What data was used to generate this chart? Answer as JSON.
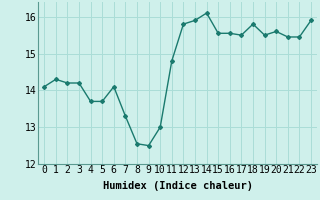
{
  "x": [
    0,
    1,
    2,
    3,
    4,
    5,
    6,
    7,
    8,
    9,
    10,
    11,
    12,
    13,
    14,
    15,
    16,
    17,
    18,
    19,
    20,
    21,
    22,
    23
  ],
  "y": [
    14.1,
    14.3,
    14.2,
    14.2,
    13.7,
    13.7,
    14.1,
    13.3,
    12.55,
    12.5,
    13.0,
    14.8,
    15.8,
    15.9,
    16.1,
    15.55,
    15.55,
    15.5,
    15.8,
    15.5,
    15.6,
    15.45,
    15.45,
    15.9
  ],
  "line_color": "#1a7a6e",
  "marker": "D",
  "marker_size": 2,
  "bg_color": "#cff0eb",
  "grid_color": "#aaddd7",
  "xlabel": "Humidex (Indice chaleur)",
  "xlim": [
    -0.5,
    23.5
  ],
  "ylim": [
    12,
    16.4
  ],
  "yticks": [
    12,
    13,
    14,
    15,
    16
  ],
  "xtick_labels": [
    "0",
    "1",
    "2",
    "3",
    "4",
    "5",
    "6",
    "7",
    "8",
    "9",
    "10",
    "11",
    "12",
    "13",
    "14",
    "15",
    "16",
    "17",
    "18",
    "19",
    "20",
    "21",
    "22",
    "23"
  ],
  "xlabel_fontsize": 7.5,
  "tick_fontsize": 7
}
